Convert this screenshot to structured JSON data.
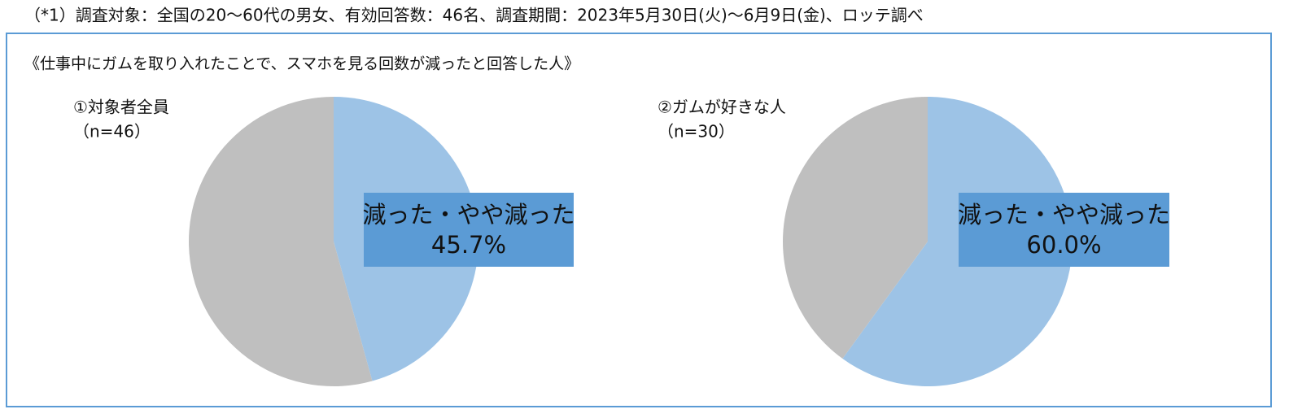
{
  "note": "（*1）調査対象：全国の20～60代の男女、有効回答数：46名、調査期間：2023年5月30日(火)～6月9日(金)、ロッテ調べ",
  "subtitle": "《仕事中にガムを取り入れたことで、スマホを見る回数が減ったと回答した人》",
  "chart_data": [
    {
      "type": "pie",
      "title": "①対象者全員",
      "subtitle": "（n=46）",
      "categories": [
        "減った・やや減った",
        null
      ],
      "values": [
        45.7,
        54.3
      ],
      "value_labels": [
        "45.7%",
        null
      ],
      "colors": [
        "#9dc3e6",
        "#bfbfbf"
      ],
      "label_color": "#5b9bd5"
    },
    {
      "type": "pie",
      "title": "②ガムが好きな人",
      "subtitle": "（n=30）",
      "categories": [
        "減った・やや減った",
        null
      ],
      "values": [
        60.0,
        40.0
      ],
      "value_labels": [
        "60.0%",
        null
      ],
      "colors": [
        "#9dc3e6",
        "#bfbfbf"
      ],
      "label_color": "#5b9bd5"
    }
  ]
}
